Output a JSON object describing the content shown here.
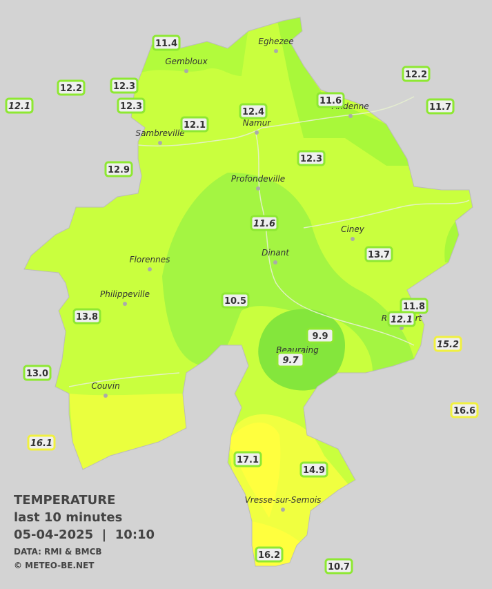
{
  "stations": [
    "11.4",
    "12.2",
    "12.3",
    "12.1",
    "12.3",
    "12.4",
    "12.1",
    "11.6",
    "12.2",
    "11.7",
    "12.3",
    "12.9",
    "11.6",
    "13.7",
    "10.5",
    "13.8",
    "11.8",
    "12.1",
    "9.9",
    "9.7",
    "15.2",
    "13.0",
    "16.6",
    "16.1",
    "17.1",
    "14.9",
    "16.2",
    "10.7"
  ],
  "cities": [
    "Eghezee",
    "Gembloux",
    "Andenne",
    "Namur",
    "Sambreville",
    "Profondeville",
    "Ciney",
    "Dinant",
    "Florennes",
    "Philippeville",
    "Rochefort",
    "Beauraing",
    "Couvin",
    "Vresse-sur-Semois"
  ],
  "legend": {
    "title": "TEMPERATURE",
    "subtitle": "last 10 minutes",
    "datetime": "05-04-2025  |  10:10",
    "source": "DATA: RMI & BMCB",
    "copyright": "© METEO-BE.NET"
  }
}
